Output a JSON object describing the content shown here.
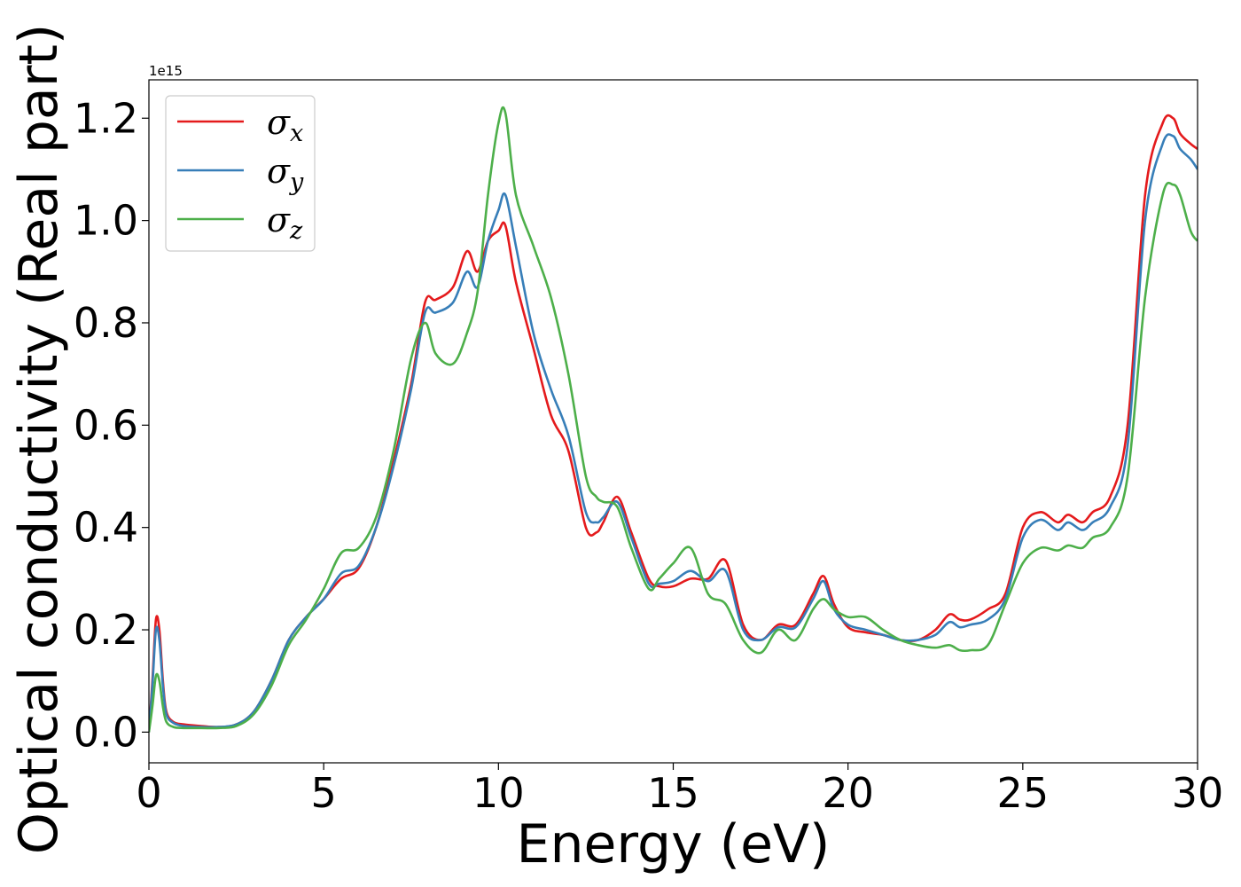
{
  "chart_data": {
    "type": "line",
    "title": "",
    "xlabel": "Energy (eV)",
    "ylabel": "Optical conductivity (Real part)",
    "offset_label": "1e15",
    "xlim": [
      0,
      30
    ],
    "ylim": [
      -0.06,
      1.275
    ],
    "xticks": [
      0,
      5,
      10,
      15,
      20,
      25,
      30
    ],
    "xtick_labels": [
      "0",
      "5",
      "10",
      "15",
      "20",
      "25",
      "30"
    ],
    "yticks": [
      0.0,
      0.2,
      0.4,
      0.6,
      0.8,
      1.0,
      1.2
    ],
    "ytick_labels": [
      "0.0",
      "0.2",
      "0.4",
      "0.6",
      "0.8",
      "1.0",
      "1.2"
    ],
    "grid": false,
    "legend_position": "top-left",
    "series": [
      {
        "name": "σ",
        "subscript": "x",
        "color": "#e41a1c",
        "x": [
          0,
          0.1,
          0.2,
          0.3,
          0.4,
          0.5,
          0.7,
          1.0,
          1.5,
          2.0,
          2.5,
          3.0,
          3.5,
          4.0,
          4.5,
          5.0,
          5.5,
          6.0,
          6.5,
          7.0,
          7.5,
          7.9,
          8.2,
          8.7,
          9.1,
          9.4,
          9.7,
          10.0,
          10.2,
          10.5,
          11.0,
          11.5,
          12.0,
          12.5,
          12.8,
          13.0,
          13.4,
          13.8,
          14.3,
          14.6,
          15.0,
          15.5,
          16.0,
          16.5,
          17.0,
          17.5,
          18.0,
          18.5,
          19.0,
          19.3,
          19.6,
          20.0,
          20.5,
          21.0,
          21.5,
          22.0,
          22.5,
          22.9,
          23.2,
          23.5,
          24.0,
          24.5,
          25.0,
          25.5,
          26.0,
          26.3,
          26.7,
          27.0,
          27.5,
          28.0,
          28.5,
          29.0,
          29.3,
          29.5,
          29.8,
          30.0
        ],
        "y": [
          0.0,
          0.1,
          0.22,
          0.2,
          0.1,
          0.04,
          0.02,
          0.015,
          0.012,
          0.01,
          0.015,
          0.04,
          0.1,
          0.18,
          0.225,
          0.26,
          0.3,
          0.32,
          0.4,
          0.53,
          0.68,
          0.84,
          0.845,
          0.87,
          0.94,
          0.9,
          0.96,
          0.98,
          0.99,
          0.88,
          0.75,
          0.62,
          0.55,
          0.4,
          0.39,
          0.41,
          0.46,
          0.39,
          0.3,
          0.285,
          0.285,
          0.3,
          0.3,
          0.335,
          0.21,
          0.18,
          0.21,
          0.21,
          0.27,
          0.305,
          0.25,
          0.205,
          0.195,
          0.19,
          0.18,
          0.18,
          0.2,
          0.23,
          0.22,
          0.22,
          0.24,
          0.27,
          0.4,
          0.43,
          0.41,
          0.425,
          0.41,
          0.43,
          0.46,
          0.6,
          1.05,
          1.19,
          1.2,
          1.17,
          1.15,
          1.14
        ]
      },
      {
        "name": "σ",
        "subscript": "y",
        "color": "#377eb8",
        "x": [
          0,
          0.1,
          0.2,
          0.3,
          0.4,
          0.5,
          0.7,
          1.0,
          1.5,
          2.0,
          2.5,
          3.0,
          3.5,
          4.0,
          4.5,
          5.0,
          5.5,
          6.0,
          6.5,
          7.0,
          7.5,
          7.9,
          8.2,
          8.7,
          9.1,
          9.4,
          9.7,
          10.0,
          10.2,
          10.5,
          11.0,
          11.5,
          12.0,
          12.5,
          12.8,
          13.0,
          13.4,
          13.8,
          14.3,
          14.6,
          15.0,
          15.5,
          16.0,
          16.5,
          17.0,
          17.5,
          18.0,
          18.5,
          19.0,
          19.3,
          19.6,
          20.0,
          20.5,
          21.0,
          21.5,
          22.0,
          22.5,
          22.9,
          23.2,
          23.5,
          24.0,
          24.5,
          25.0,
          25.5,
          26.0,
          26.3,
          26.7,
          27.0,
          27.5,
          28.0,
          28.5,
          29.0,
          29.3,
          29.5,
          29.8,
          30.0
        ],
        "y": [
          0.0,
          0.09,
          0.2,
          0.18,
          0.09,
          0.035,
          0.018,
          0.012,
          0.01,
          0.01,
          0.015,
          0.04,
          0.1,
          0.18,
          0.225,
          0.26,
          0.31,
          0.325,
          0.4,
          0.52,
          0.67,
          0.82,
          0.82,
          0.84,
          0.9,
          0.87,
          0.96,
          1.02,
          1.05,
          0.95,
          0.78,
          0.67,
          0.58,
          0.43,
          0.41,
          0.42,
          0.45,
          0.38,
          0.29,
          0.29,
          0.295,
          0.315,
          0.295,
          0.315,
          0.2,
          0.18,
          0.205,
          0.205,
          0.26,
          0.295,
          0.24,
          0.21,
          0.2,
          0.19,
          0.18,
          0.18,
          0.19,
          0.215,
          0.205,
          0.21,
          0.22,
          0.26,
          0.38,
          0.415,
          0.395,
          0.41,
          0.395,
          0.41,
          0.44,
          0.56,
          1.0,
          1.15,
          1.165,
          1.14,
          1.12,
          1.1
        ]
      },
      {
        "name": "σ",
        "subscript": "z",
        "color": "#4daf4a",
        "x": [
          0,
          0.1,
          0.2,
          0.3,
          0.4,
          0.5,
          0.7,
          1.0,
          1.5,
          2.0,
          2.5,
          3.0,
          3.5,
          4.0,
          4.5,
          5.0,
          5.5,
          6.0,
          6.5,
          7.0,
          7.5,
          7.9,
          8.2,
          8.7,
          9.1,
          9.4,
          9.7,
          10.0,
          10.2,
          10.5,
          11.0,
          11.5,
          12.0,
          12.5,
          12.8,
          13.0,
          13.4,
          13.8,
          14.3,
          14.6,
          15.0,
          15.5,
          16.0,
          16.5,
          17.0,
          17.5,
          18.0,
          18.5,
          19.0,
          19.3,
          19.6,
          20.0,
          20.5,
          21.0,
          21.5,
          22.0,
          22.5,
          22.9,
          23.2,
          23.5,
          24.0,
          24.5,
          25.0,
          25.5,
          26.0,
          26.3,
          26.7,
          27.0,
          27.5,
          28.0,
          28.5,
          29.0,
          29.3,
          29.5,
          29.8,
          30.0
        ],
        "y": [
          0.0,
          0.05,
          0.11,
          0.1,
          0.05,
          0.02,
          0.01,
          0.008,
          0.008,
          0.008,
          0.012,
          0.035,
          0.09,
          0.17,
          0.22,
          0.28,
          0.35,
          0.36,
          0.42,
          0.55,
          0.73,
          0.8,
          0.74,
          0.72,
          0.78,
          0.86,
          1.05,
          1.19,
          1.21,
          1.05,
          0.95,
          0.85,
          0.7,
          0.5,
          0.46,
          0.45,
          0.44,
          0.36,
          0.28,
          0.3,
          0.33,
          0.36,
          0.27,
          0.25,
          0.18,
          0.155,
          0.2,
          0.18,
          0.24,
          0.26,
          0.24,
          0.225,
          0.225,
          0.2,
          0.18,
          0.17,
          0.165,
          0.17,
          0.16,
          0.16,
          0.17,
          0.25,
          0.33,
          0.36,
          0.355,
          0.365,
          0.36,
          0.38,
          0.4,
          0.5,
          0.85,
          1.05,
          1.07,
          1.05,
          0.98,
          0.96
        ]
      }
    ]
  }
}
